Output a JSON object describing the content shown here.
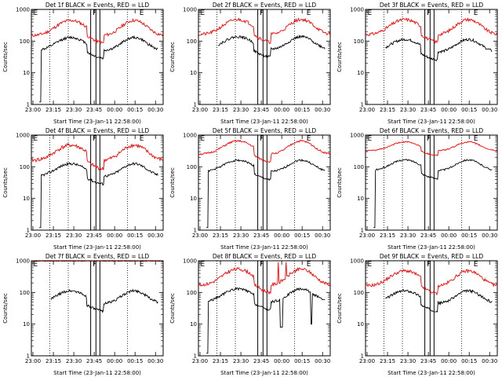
{
  "layout": {
    "rows": 3,
    "cols": 3
  },
  "colors": {
    "events": "#000000",
    "lld": "#ff0000",
    "axis": "#000000",
    "background": "#ffffff"
  },
  "chart_data": [
    {
      "type": "line",
      "title": "Det 1f BLACK = Events, RED = LLD",
      "xlabel": "Start Time (23-Jan-11 22:58:00)",
      "ylabel": "Counts/sec",
      "xticks": [
        "23:00",
        "23:15",
        "23:30",
        "23:45",
        "00:00",
        "00:15",
        "00:30"
      ],
      "yticks": [
        "1",
        "10",
        "100",
        "1000"
      ],
      "ylim": [
        1,
        1000
      ],
      "yscale": "log",
      "interval_markers": [
        "E",
        "F",
        "E"
      ],
      "series": [
        {
          "name": "LLD",
          "color": "#ff0000",
          "start": 0,
          "end": 1.0,
          "base": 150,
          "amplitude": 3.0,
          "dip": 0.55,
          "noise": 0.1,
          "seed": 11
        },
        {
          "name": "Events",
          "color": "#000000",
          "start": 0.06,
          "end": 0.96,
          "base": 50,
          "amplitude": 2.6,
          "dip": 0.55,
          "noise": 0.08,
          "seed": 12,
          "initial_drop": true
        }
      ]
    },
    {
      "type": "line",
      "title": "Det 2f BLACK = Events, RED = LLD",
      "xlabel": "Start Time (23-Jan-11 22:58:00)",
      "ylabel": "Counts/sec",
      "xticks": [
        "23:00",
        "23:15",
        "23:30",
        "23:45",
        "00:00",
        "00:15",
        "00:30"
      ],
      "yticks": [
        "1",
        "10",
        "100",
        "1000"
      ],
      "ylim": [
        1,
        1000
      ],
      "yscale": "log",
      "interval_markers": [
        "E",
        "F",
        "E"
      ],
      "series": [
        {
          "name": "LLD",
          "color": "#ff0000",
          "start": 0,
          "end": 1.0,
          "base": 160,
          "amplitude": 3.0,
          "dip": 0.55,
          "noise": 0.1,
          "seed": 21
        },
        {
          "name": "Events",
          "color": "#000000",
          "start": 0.15,
          "end": 0.96,
          "base": 55,
          "amplitude": 2.5,
          "dip": 0.55,
          "noise": 0.08,
          "seed": 22
        }
      ]
    },
    {
      "type": "line",
      "title": "Det 3f BLACK = Events, RED = LLD",
      "xlabel": "Start Time (23-Jan-11 22:58:00)",
      "ylabel": "Counts/sec",
      "xticks": [
        "23:00",
        "23:15",
        "23:30",
        "23:45",
        "00:00",
        "00:15",
        "00:30"
      ],
      "yticks": [
        "1",
        "10",
        "100",
        "1000"
      ],
      "ylim": [
        1,
        1000
      ],
      "yscale": "log",
      "interval_markers": [
        "E",
        "F",
        "E"
      ],
      "series": [
        {
          "name": "LLD",
          "color": "#ff0000",
          "start": 0,
          "end": 1.0,
          "base": 160,
          "amplitude": 3.0,
          "dip": 0.55,
          "noise": 0.1,
          "seed": 31
        },
        {
          "name": "Events",
          "color": "#000000",
          "start": 0.15,
          "end": 0.96,
          "base": 45,
          "amplitude": 2.5,
          "dip": 0.55,
          "noise": 0.08,
          "seed": 32
        }
      ]
    },
    {
      "type": "line",
      "title": "Det 4f BLACK = Events, RED = LLD",
      "xlabel": "Start Time (23-Jan-11 22:58:00)",
      "ylabel": "Counts/sec",
      "xticks": [
        "23:00",
        "23:15",
        "23:30",
        "23:45",
        "00:00",
        "00:15",
        "00:30"
      ],
      "yticks": [
        "1",
        "10",
        "100",
        "1000"
      ],
      "ylim": [
        1,
        1000
      ],
      "yscale": "log",
      "interval_markers": [
        "E",
        "F",
        "E"
      ],
      "series": [
        {
          "name": "LLD",
          "color": "#ff0000",
          "start": 0,
          "end": 1.0,
          "base": 160,
          "amplitude": 3.0,
          "dip": 0.5,
          "noise": 0.12,
          "seed": 41
        },
        {
          "name": "Events",
          "color": "#000000",
          "start": 0.06,
          "end": 0.96,
          "base": 50,
          "amplitude": 2.5,
          "dip": 0.55,
          "noise": 0.08,
          "seed": 42,
          "initial_drop": true
        }
      ]
    },
    {
      "type": "line",
      "title": "Det 5f BLACK = Events, RED = LLD",
      "xlabel": "Start Time (23-Jan-11 22:58:00)",
      "ylabel": "Counts/sec",
      "xticks": [
        "23:00",
        "23:15",
        "23:30",
        "23:45",
        "00:00",
        "00:15",
        "00:30"
      ],
      "yticks": [
        "1",
        "10",
        "100",
        "1000"
      ],
      "ylim": [
        1,
        1000
      ],
      "yscale": "log",
      "interval_markers": [
        "E",
        "F",
        "E"
      ],
      "series": [
        {
          "name": "LLD",
          "color": "#ff0000",
          "start": 0,
          "end": 1.0,
          "base": 250,
          "amplitude": 2.6,
          "dip": 0.55,
          "noise": 0.06,
          "seed": 51
        },
        {
          "name": "Events",
          "color": "#000000",
          "start": 0.06,
          "end": 0.96,
          "base": 70,
          "amplitude": 2.3,
          "dip": 0.55,
          "noise": 0.06,
          "seed": 52,
          "initial_drop": true
        }
      ]
    },
    {
      "type": "line",
      "title": "Det 6f BLACK = Events, RED = LLD",
      "xlabel": "Start Time (23-Jan-11 22:58:00)",
      "ylabel": "Counts/sec",
      "xticks": [
        "23:00",
        "23:15",
        "23:30",
        "23:45",
        "00:00",
        "00:15",
        "00:30"
      ],
      "yticks": [
        "1",
        "10",
        "100",
        "1000"
      ],
      "ylim": [
        1,
        1000
      ],
      "yscale": "log",
      "interval_markers": [
        "E",
        "F",
        "E"
      ],
      "series": [
        {
          "name": "LLD",
          "color": "#ff0000",
          "start": 0,
          "end": 1.0,
          "base": 320,
          "amplitude": 1.9,
          "dip": 0.7,
          "noise": 0.04,
          "seed": 61
        },
        {
          "name": "Events",
          "color": "#000000",
          "start": 0.06,
          "end": 0.96,
          "base": 75,
          "amplitude": 2.2,
          "dip": 0.55,
          "noise": 0.05,
          "seed": 62,
          "initial_drop": true
        }
      ]
    },
    {
      "type": "line",
      "title": "Det 7f BLACK = Events, RED = LLD",
      "xlabel": "Start Time (23-Jan-11 22:58:00)",
      "ylabel": "Counts/sec",
      "xticks": [
        "23:00",
        "23:15",
        "23:30",
        "23:45",
        "00:00",
        "00:15",
        "00:30"
      ],
      "yticks": [
        "1",
        "10",
        "100",
        "1000"
      ],
      "ylim": [
        1,
        1000
      ],
      "yscale": "log",
      "interval_markers": [
        "E",
        "F",
        "E"
      ],
      "series": [
        {
          "name": "LLD",
          "color": "#ff0000",
          "start": 0,
          "end": 1.0,
          "base": 1000,
          "amplitude": 1.0,
          "dip": 1.0,
          "noise": 0.03,
          "seed": 71,
          "saturated": true
        },
        {
          "name": "Events",
          "color": "#000000",
          "start": 0.15,
          "end": 0.96,
          "base": 45,
          "amplitude": 2.5,
          "dip": 0.55,
          "noise": 0.08,
          "seed": 72
        }
      ]
    },
    {
      "type": "line",
      "title": "Det 8f BLACK = Events, RED = LLD",
      "xlabel": "Start Time (23-Jan-11 22:58:00)",
      "ylabel": "Counts/sec",
      "xticks": [
        "23:00",
        "23:15",
        "23:30",
        "23:45",
        "00:00",
        "00:15",
        "00:30"
      ],
      "yticks": [
        "1",
        "10",
        "100",
        "1000"
      ],
      "ylim": [
        1,
        1000
      ],
      "yscale": "log",
      "interval_markers": [
        "E",
        "F",
        "E"
      ],
      "series": [
        {
          "name": "LLD",
          "color": "#ff0000",
          "start": 0,
          "end": 1.0,
          "base": 170,
          "amplitude": 3.2,
          "dip": 0.55,
          "noise": 0.1,
          "seed": 81,
          "spikes": true
        },
        {
          "name": "Events",
          "color": "#000000",
          "start": 0.06,
          "end": 0.96,
          "base": 50,
          "amplitude": 2.6,
          "dip": 0.55,
          "noise": 0.08,
          "seed": 82,
          "initial_drop": true,
          "gaps": true
        }
      ]
    },
    {
      "type": "line",
      "title": "Det 9f BLACK = Events, RED = LLD",
      "xlabel": "Start Time (23-Jan-11 22:58:00)",
      "ylabel": "Counts/sec",
      "xticks": [
        "23:00",
        "23:15",
        "23:30",
        "23:45",
        "00:00",
        "00:15",
        "00:30"
      ],
      "yticks": [
        "1",
        "10",
        "100",
        "1000"
      ],
      "ylim": [
        1,
        1000
      ],
      "yscale": "log",
      "interval_markers": [
        "E",
        "F",
        "E"
      ],
      "series": [
        {
          "name": "LLD",
          "color": "#ff0000",
          "start": 0,
          "end": 1.0,
          "base": 160,
          "amplitude": 3.0,
          "dip": 0.55,
          "noise": 0.1,
          "seed": 91
        },
        {
          "name": "Events",
          "color": "#000000",
          "start": 0.15,
          "end": 0.96,
          "base": 45,
          "amplitude": 2.5,
          "dip": 0.55,
          "noise": 0.08,
          "seed": 92
        }
      ]
    }
  ]
}
